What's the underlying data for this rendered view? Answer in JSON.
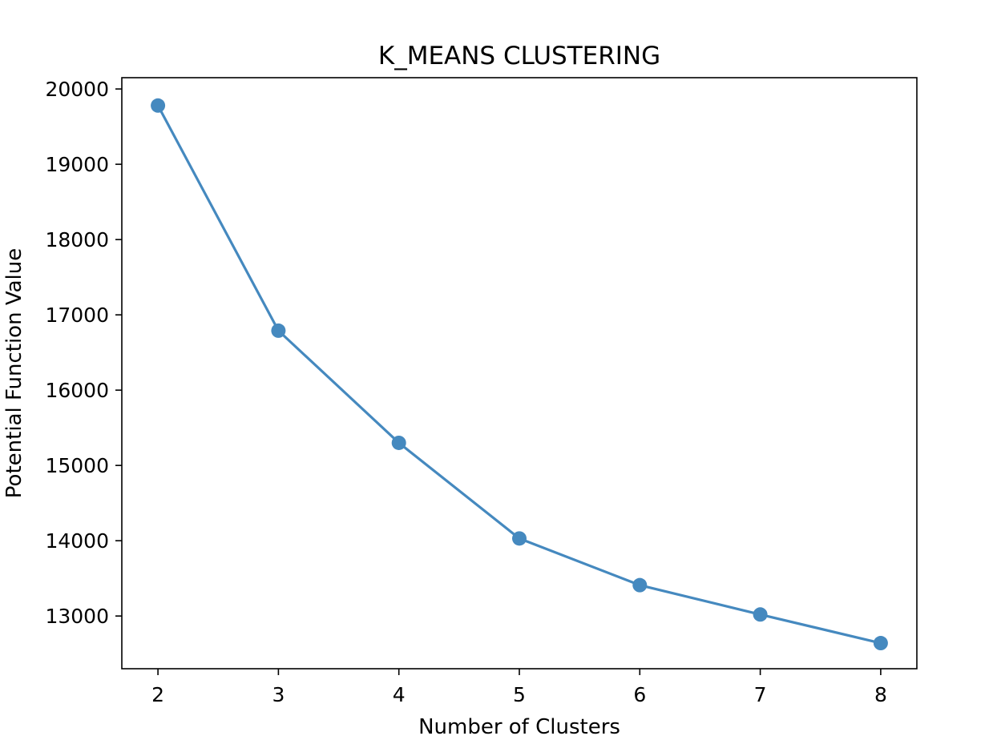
{
  "chart_data": {
    "type": "line",
    "title": "K_MEANS CLUSTERING",
    "xlabel": "Number of Clusters",
    "ylabel": "Potential Function Value",
    "x": [
      2,
      3,
      4,
      5,
      6,
      7,
      8
    ],
    "series": [
      {
        "values": [
          19780,
          16790,
          15300,
          14030,
          13410,
          13020,
          12640
        ]
      }
    ],
    "xticks": [
      2,
      3,
      4,
      5,
      6,
      7,
      8
    ],
    "yticks": [
      13000,
      14000,
      15000,
      16000,
      17000,
      18000,
      19000,
      20000
    ],
    "xlim": [
      1.7,
      8.3
    ],
    "ylim": [
      12300,
      20150
    ],
    "grid": false,
    "line_color": "#4589bf",
    "marker": "circle"
  }
}
